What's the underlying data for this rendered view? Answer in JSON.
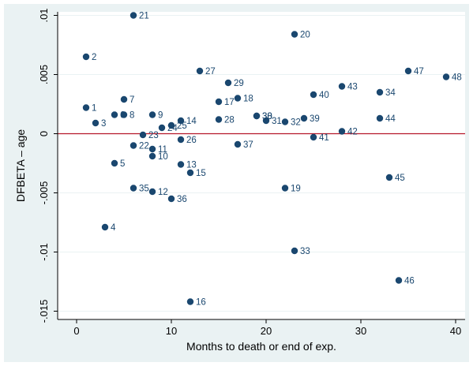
{
  "chart_data": {
    "type": "scatter",
    "title": "",
    "xlabel": "Months to death or end of exp.",
    "ylabel": "DFBETA – age",
    "xlim": [
      -2,
      41
    ],
    "ylim": [
      -0.0157,
      0.0103
    ],
    "x_ticks": [
      0,
      10,
      20,
      30,
      40
    ],
    "x_tick_labels": [
      "0",
      "10",
      "20",
      "30",
      "40"
    ],
    "y_ticks": [
      -0.015,
      -0.01,
      -0.005,
      0,
      0.005,
      0.01
    ],
    "y_tick_labels": [
      "-.015",
      "-.01",
      "-.005",
      "0",
      ".005",
      ".01"
    ],
    "grid": "horizontal",
    "reference_line": {
      "y": 0,
      "color": "#b5182a"
    },
    "colors": {
      "marker": "#1a476f",
      "plot_bg": "#ffffff",
      "frame_bg": "#eaf2f3",
      "grid": "#eaf2f3"
    },
    "points": [
      {
        "label": "1",
        "x": 1,
        "y": 0.0022
      },
      {
        "label": "2",
        "x": 1,
        "y": 0.0065
      },
      {
        "label": "3",
        "x": 2,
        "y": 0.0009
      },
      {
        "label": "4",
        "x": 3,
        "y": -0.0079
      },
      {
        "label": "5",
        "x": 4,
        "y": -0.0025
      },
      {
        "label": "6",
        "x": 4,
        "y": 0.0016
      },
      {
        "label": "7",
        "x": 5,
        "y": 0.0029
      },
      {
        "label": "8",
        "x": 5,
        "y": 0.0016
      },
      {
        "label": "9",
        "x": 8,
        "y": 0.0016
      },
      {
        "label": "10",
        "x": 8,
        "y": -0.0019
      },
      {
        "label": "11",
        "x": 8,
        "y": -0.0013
      },
      {
        "label": "12",
        "x": 8,
        "y": -0.0049
      },
      {
        "label": "13",
        "x": 11,
        "y": -0.0026
      },
      {
        "label": "14",
        "x": 11,
        "y": 0.0011
      },
      {
        "label": "15",
        "x": 12,
        "y": -0.0033
      },
      {
        "label": "16",
        "x": 12,
        "y": -0.0142
      },
      {
        "label": "17",
        "x": 15,
        "y": 0.0027
      },
      {
        "label": "18",
        "x": 17,
        "y": 0.003
      },
      {
        "label": "19",
        "x": 22,
        "y": -0.0046
      },
      {
        "label": "20",
        "x": 23,
        "y": 0.0084
      },
      {
        "label": "21",
        "x": 6,
        "y": 0.01
      },
      {
        "label": "22",
        "x": 6,
        "y": -0.001
      },
      {
        "label": "23",
        "x": 7,
        "y": -0.0001
      },
      {
        "label": "24",
        "x": 9,
        "y": 0.0005
      },
      {
        "label": "25",
        "x": 10,
        "y": 0.0007
      },
      {
        "label": "26",
        "x": 11,
        "y": -0.0005
      },
      {
        "label": "27",
        "x": 13,
        "y": 0.0053
      },
      {
        "label": "28",
        "x": 15,
        "y": 0.0012
      },
      {
        "label": "29",
        "x": 16,
        "y": 0.0043
      },
      {
        "label": "30",
        "x": 19,
        "y": 0.0015
      },
      {
        "label": "31",
        "x": 20,
        "y": 0.0011
      },
      {
        "label": "32",
        "x": 22,
        "y": 0.001
      },
      {
        "label": "33",
        "x": 23,
        "y": -0.0099
      },
      {
        "label": "34",
        "x": 32,
        "y": 0.0035
      },
      {
        "label": "35",
        "x": 6,
        "y": -0.0046
      },
      {
        "label": "36",
        "x": 10,
        "y": -0.0055
      },
      {
        "label": "37",
        "x": 17,
        "y": -0.0009
      },
      {
        "label": "38",
        "x": 19,
        "y": 0.0015
      },
      {
        "label": "39",
        "x": 24,
        "y": 0.0013
      },
      {
        "label": "40",
        "x": 25,
        "y": 0.0033
      },
      {
        "label": "41",
        "x": 25,
        "y": -0.0003
      },
      {
        "label": "42",
        "x": 28,
        "y": 0.0002
      },
      {
        "label": "43",
        "x": 28,
        "y": 0.004
      },
      {
        "label": "44",
        "x": 32,
        "y": 0.0013
      },
      {
        "label": "45",
        "x": 33,
        "y": -0.0037
      },
      {
        "label": "46",
        "x": 34,
        "y": -0.0124
      },
      {
        "label": "47",
        "x": 35,
        "y": 0.0053
      },
      {
        "label": "48",
        "x": 39,
        "y": 0.0048
      }
    ]
  }
}
